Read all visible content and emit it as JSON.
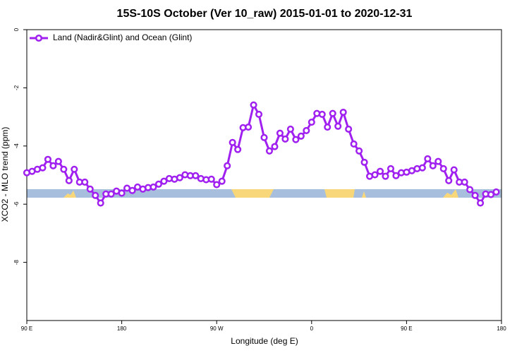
{
  "chart_data": {
    "type": "line",
    "title": "15S-10S October (Ver 10_raw)   2015-01-01 to 2020-12-31",
    "x_label": "Longitude (deg E)",
    "y_label": "XCO2 - MLO trend (ppm)",
    "xlim": [
      90,
      540
    ],
    "ylim": [
      -10,
      0
    ],
    "xticks": [
      {
        "value": 90,
        "label": "90 E"
      },
      180,
      {
        "value": 270,
        "label": "90 W"
      },
      {
        "value": 360,
        "label": "0"
      },
      {
        "value": 450,
        "label": "90 E"
      },
      {
        "value": 540,
        "label": "180"
      }
    ],
    "yticks": [
      0,
      -2,
      -4,
      -6,
      -8
    ],
    "legend": "top-left",
    "x": [
      90,
      95,
      100,
      105,
      110,
      115,
      120,
      125,
      130,
      135,
      140,
      145,
      150,
      155,
      160,
      165,
      170,
      175,
      180,
      185,
      190,
      195,
      200,
      205,
      210,
      215,
      220,
      225,
      230,
      235,
      240,
      245,
      250,
      255,
      260,
      265,
      270,
      275,
      280,
      285,
      290,
      295,
      300,
      305,
      310,
      315,
      320,
      325,
      330,
      335,
      340,
      345,
      350,
      355,
      360,
      365,
      370,
      375,
      380,
      385,
      390,
      395,
      400,
      405,
      410,
      415,
      420,
      425,
      430,
      435,
      440,
      445,
      450,
      455,
      460,
      465,
      470,
      475,
      480,
      485,
      490,
      495,
      500,
      505,
      510,
      515,
      520,
      525,
      530,
      535
    ],
    "series": [
      {
        "name": "Land (Nadir&Glint) and Ocean (Glint)",
        "color": "#a020f0",
        "values": [
          -4.92,
          -4.87,
          -4.8,
          -4.75,
          -4.46,
          -4.68,
          -4.53,
          -4.8,
          -5.19,
          -4.8,
          -5.24,
          -5.24,
          -5.48,
          -5.7,
          -5.96,
          -5.65,
          -5.65,
          -5.55,
          -5.62,
          -5.45,
          -5.53,
          -5.41,
          -5.48,
          -5.43,
          -5.41,
          -5.31,
          -5.21,
          -5.12,
          -5.14,
          -5.09,
          -4.99,
          -5.02,
          -5.02,
          -5.12,
          -5.16,
          -5.14,
          -5.33,
          -5.21,
          -4.68,
          -3.88,
          -4.12,
          -3.37,
          -3.35,
          -2.59,
          -2.91,
          -3.71,
          -4.17,
          -4.02,
          -3.56,
          -3.76,
          -3.42,
          -3.78,
          -3.66,
          -3.47,
          -3.18,
          -2.88,
          -2.91,
          -3.35,
          -2.88,
          -3.32,
          -2.84,
          -3.42,
          -3.93,
          -4.17,
          -4.56,
          -5.04,
          -4.99,
          -4.87,
          -5.04,
          -4.78,
          -5.02,
          -4.92,
          -4.9,
          -4.85,
          -4.78,
          -4.75,
          -4.44,
          -4.68,
          -4.53,
          -4.78,
          -5.19,
          -4.82,
          -5.24,
          -5.24,
          -5.5,
          -5.7,
          -5.96,
          -5.65,
          -5.67,
          -5.58
        ]
      }
    ]
  }
}
